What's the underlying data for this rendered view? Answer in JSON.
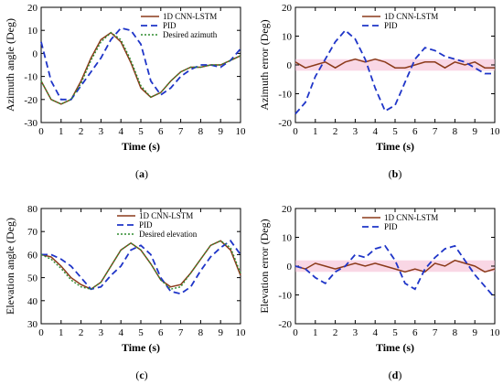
{
  "colors": {
    "cnn": "#8b3a1a",
    "pid": "#1f35c8",
    "desired": "#2e8b2e",
    "band": "#f4b6d0"
  },
  "chart_data": [
    {
      "id": "a",
      "type": "line",
      "panel_label": "a",
      "xlabel": "Time (s)",
      "ylabel": "Azimuth angle (Deg)",
      "xlim": [
        0,
        10
      ],
      "ylim": [
        -30,
        20
      ],
      "xticks": [
        0,
        1,
        2,
        3,
        4,
        5,
        6,
        7,
        8,
        9,
        10
      ],
      "yticks": [
        -30,
        -20,
        -10,
        0,
        10,
        20
      ],
      "legend_position": "top-right",
      "series": [
        {
          "name": "1D CNN-LSTM",
          "style": "cnn",
          "x": [
            0,
            0.5,
            1,
            1.5,
            2,
            2.5,
            3,
            3.5,
            4,
            4.5,
            5,
            5.5,
            6,
            6.5,
            7,
            7.5,
            8,
            8.5,
            9,
            9.5,
            10
          ],
          "y": [
            -12,
            -20,
            -22,
            -20,
            -12,
            -2,
            6,
            9,
            5,
            -4,
            -15,
            -19,
            -17,
            -12,
            -8,
            -6,
            -6,
            -5,
            -5,
            -3,
            -1
          ]
        },
        {
          "name": "PID",
          "style": "pid",
          "x": [
            0,
            0.5,
            1,
            1.5,
            2,
            2.5,
            3,
            3.5,
            4,
            4.5,
            5,
            5.5,
            6,
            6.5,
            7,
            7.5,
            8,
            8.5,
            9,
            9.5,
            10
          ],
          "y": [
            5,
            -12,
            -20,
            -20,
            -14,
            -8,
            -2,
            6,
            11,
            10,
            4,
            -12,
            -18,
            -15,
            -10,
            -7,
            -5,
            -5,
            -6,
            -3,
            2
          ]
        },
        {
          "name": "Desired azimuth",
          "style": "desired",
          "x": [
            0,
            0.5,
            1,
            1.5,
            2,
            2.5,
            3,
            3.5,
            4,
            4.5,
            5,
            5.5,
            6,
            6.5,
            7,
            7.5,
            8,
            8.5,
            9,
            9.5,
            10
          ],
          "y": [
            -12,
            -20,
            -22,
            -20,
            -13,
            -3,
            5,
            9,
            6,
            -3,
            -14,
            -19,
            -17,
            -12,
            -8,
            -6,
            -6,
            -5,
            -5,
            -3,
            -1
          ]
        }
      ]
    },
    {
      "id": "b",
      "type": "line",
      "panel_label": "b",
      "xlabel": "Time (s)",
      "ylabel": "Azimuth error (Deg)",
      "xlim": [
        0,
        10
      ],
      "ylim": [
        -20,
        20
      ],
      "xticks": [
        0,
        1,
        2,
        3,
        4,
        5,
        6,
        7,
        8,
        9,
        10
      ],
      "yticks": [
        -20,
        -10,
        0,
        10,
        20
      ],
      "legend_position": "top-right",
      "series": [
        {
          "name": "1D CNN-LSTM",
          "style": "cnn",
          "x": [
            0,
            0.5,
            1,
            1.5,
            2,
            2.5,
            3,
            3.5,
            4,
            4.5,
            5,
            5.5,
            6,
            6.5,
            7,
            7.5,
            8,
            8.5,
            9,
            9.5,
            10
          ],
          "y": [
            1,
            -1,
            0,
            1,
            -1,
            1,
            2,
            1,
            2,
            1,
            -1,
            -1,
            0,
            1,
            1,
            -1,
            1,
            0,
            1,
            -1,
            -1
          ]
        },
        {
          "name": "PID",
          "style": "pid",
          "x": [
            0,
            0.5,
            1,
            1.5,
            2,
            2.5,
            3,
            3.5,
            4,
            4.5,
            5,
            5.5,
            6,
            6.5,
            7,
            7.5,
            8,
            8.5,
            9,
            9.5,
            10
          ],
          "y": [
            -17,
            -13,
            -4,
            2,
            8,
            12,
            9,
            2,
            -8,
            -16,
            -14,
            -6,
            2,
            6,
            5,
            3,
            2,
            1,
            -1,
            -3,
            -3
          ]
        }
      ]
    },
    {
      "id": "c",
      "type": "line",
      "panel_label": "c",
      "xlabel": "Time (s)",
      "ylabel": "Elevation angle (Deg)",
      "xlim": [
        0,
        10
      ],
      "ylim": [
        30,
        80
      ],
      "xticks": [
        0,
        1,
        2,
        3,
        4,
        5,
        6,
        7,
        8,
        9,
        10
      ],
      "yticks": [
        30,
        40,
        50,
        60,
        70,
        80
      ],
      "legend_position": "top-right",
      "series": [
        {
          "name": "1D CNN-LSTM",
          "style": "cnn",
          "x": [
            0,
            0.5,
            1,
            1.5,
            2,
            2.5,
            3,
            3.5,
            4,
            4.5,
            5,
            5.5,
            6,
            6.5,
            7,
            7.5,
            8,
            8.5,
            9,
            9.5,
            10
          ],
          "y": [
            60,
            59,
            55,
            50,
            47,
            45,
            48,
            55,
            62,
            65,
            62,
            56,
            49,
            46,
            47,
            52,
            58,
            64,
            66,
            62,
            51
          ]
        },
        {
          "name": "PID",
          "style": "pid",
          "x": [
            0,
            0.5,
            1,
            1.5,
            2,
            2.5,
            3,
            3.5,
            4,
            4.5,
            5,
            5.5,
            6,
            6.5,
            7,
            7.5,
            8,
            8.5,
            9,
            9.5,
            10
          ],
          "y": [
            60,
            60,
            58,
            55,
            50,
            45,
            46,
            51,
            55,
            62,
            64,
            60,
            50,
            44,
            43,
            46,
            53,
            59,
            63,
            66,
            60
          ]
        },
        {
          "name": "Desired elevation",
          "style": "desired",
          "x": [
            0,
            0.5,
            1,
            1.5,
            2,
            2.5,
            3,
            3.5,
            4,
            4.5,
            5,
            5.5,
            6,
            6.5,
            7,
            7.5,
            8,
            8.5,
            9,
            9.5,
            10
          ],
          "y": [
            60,
            58,
            54,
            49,
            46,
            45,
            48,
            55,
            62,
            65,
            62,
            56,
            49,
            45,
            46,
            52,
            58,
            64,
            66,
            63,
            52
          ]
        }
      ]
    },
    {
      "id": "d",
      "type": "line",
      "panel_label": "d",
      "xlabel": "Time (s)",
      "ylabel": "Elevation error (Deg)",
      "xlim": [
        0,
        10
      ],
      "ylim": [
        -20,
        20
      ],
      "xticks": [
        0,
        1,
        2,
        3,
        4,
        5,
        6,
        7,
        8,
        9,
        10
      ],
      "yticks": [
        -20,
        -10,
        0,
        10,
        20
      ],
      "legend_position": "top-right",
      "series": [
        {
          "name": "1D CNN-LSTM",
          "style": "cnn",
          "x": [
            0,
            0.5,
            1,
            1.5,
            2,
            2.5,
            3,
            3.5,
            4,
            4.5,
            5,
            5.5,
            6,
            6.5,
            7,
            7.5,
            8,
            8.5,
            9,
            9.5,
            10
          ],
          "y": [
            0,
            -1,
            1,
            0,
            -1,
            0,
            1,
            0,
            1,
            0,
            -1,
            -2,
            -1,
            -2,
            1,
            0,
            2,
            1,
            0,
            -2,
            -1
          ]
        },
        {
          "name": "PID",
          "style": "pid",
          "x": [
            0,
            0.5,
            1,
            1.5,
            2,
            2.5,
            3,
            3.5,
            4,
            4.5,
            5,
            5.5,
            6,
            6.5,
            7,
            7.5,
            8,
            8.5,
            9,
            9.5,
            10
          ],
          "y": [
            0,
            -1,
            -4,
            -6,
            -2,
            0,
            4,
            3,
            6,
            7,
            2,
            -6,
            -8,
            -1,
            3,
            6,
            7,
            2,
            -3,
            -7,
            -11
          ]
        }
      ]
    }
  ]
}
